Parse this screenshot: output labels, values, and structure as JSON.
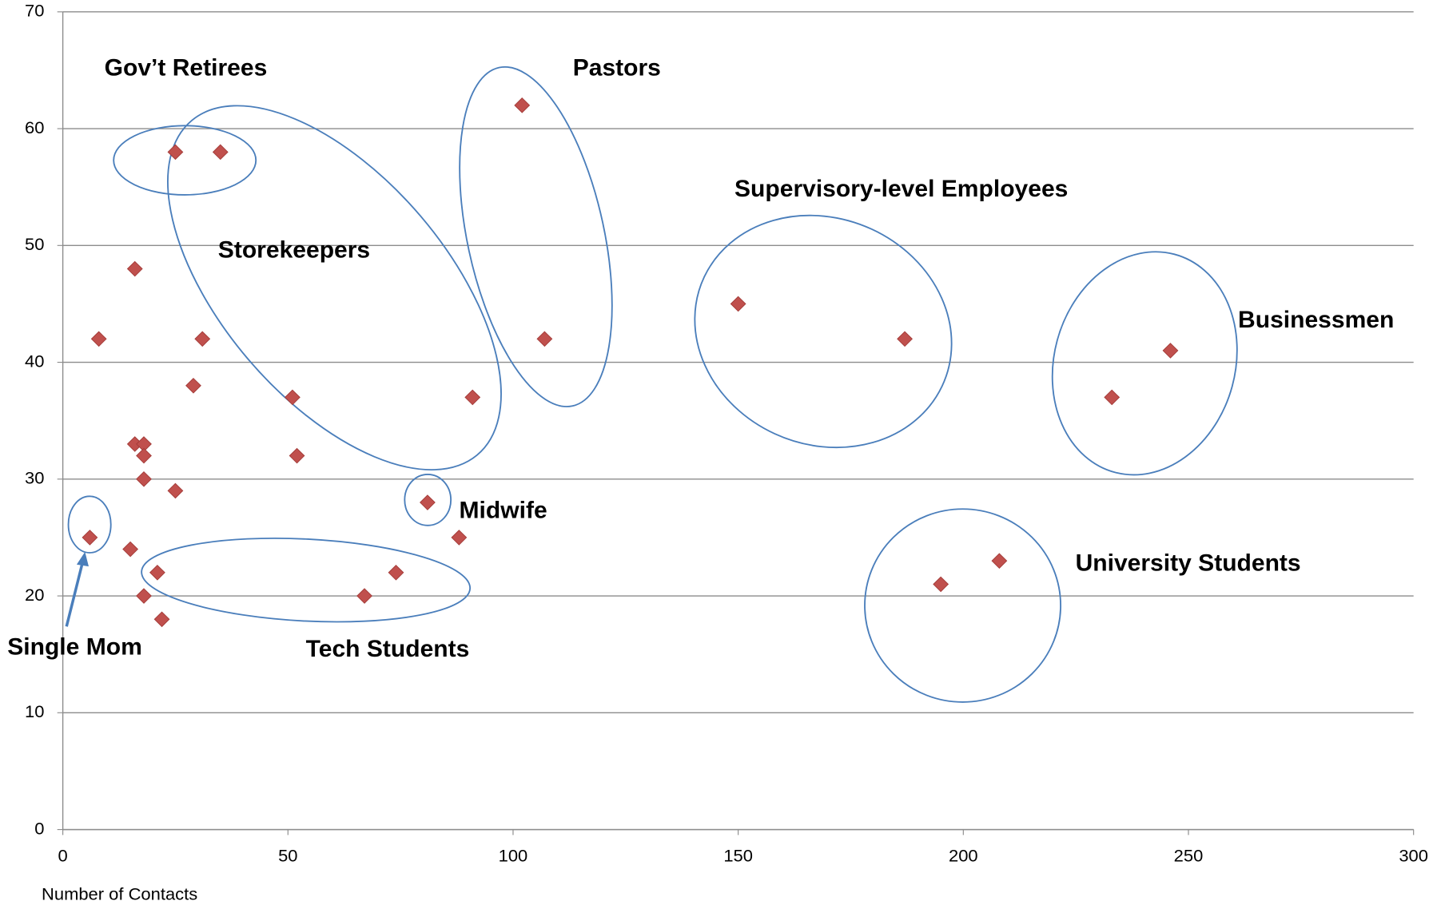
{
  "chart_data": {
    "type": "scatter",
    "x_label": "Number of Contacts",
    "x": [
      25,
      35,
      102,
      107,
      16,
      8,
      31,
      29,
      51,
      91,
      16,
      18,
      18,
      52,
      18,
      25,
      81,
      6,
      88,
      15,
      21,
      74,
      18,
      67,
      22,
      150,
      187,
      233,
      246,
      195,
      208
    ],
    "values": [
      58,
      58,
      62,
      42,
      48,
      42,
      42,
      38,
      37,
      37,
      33,
      33,
      32,
      32,
      30,
      29,
      28,
      25,
      25,
      24,
      22,
      22,
      20,
      20,
      18,
      45,
      42,
      37,
      41,
      21,
      23
    ],
    "color": "#c0504d",
    "xlim": [
      0,
      300
    ],
    "xticks": [
      0,
      50,
      100,
      150,
      200,
      250,
      300
    ],
    "ylim": [
      0,
      70
    ],
    "yticks": [
      0,
      10,
      20,
      30,
      40,
      50,
      60,
      70
    ],
    "grid": true,
    "annotations": [
      "Gov’t Retirees",
      "Pastors",
      "Supervisory-level Employees",
      "Storekeepers",
      "Businessmen",
      "Midwife",
      "University Students",
      "Single Mom",
      "Tech Students"
    ]
  }
}
